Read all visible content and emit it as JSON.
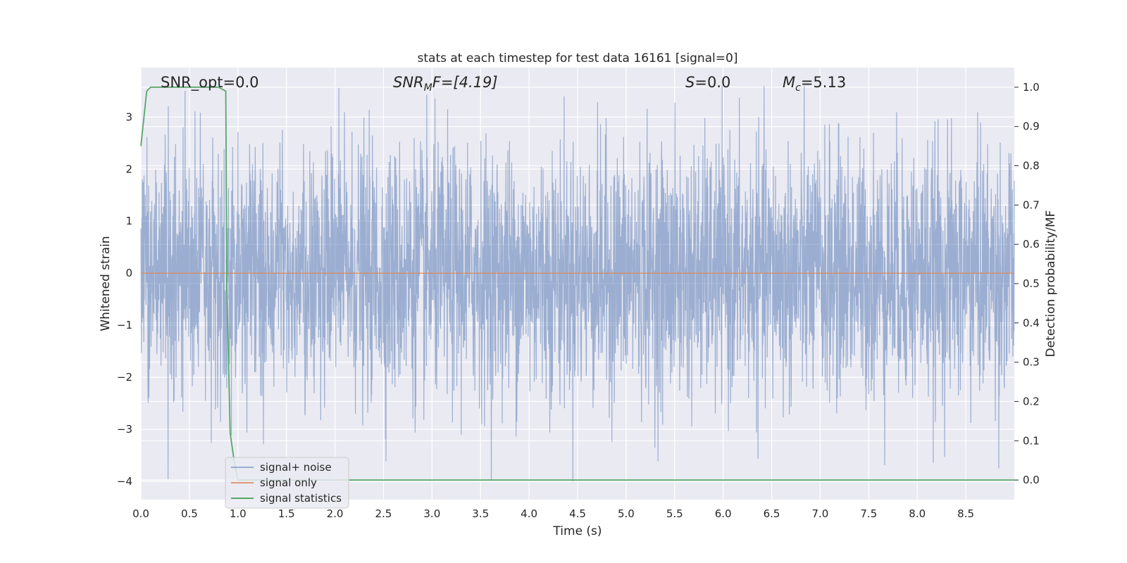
{
  "chart_data": {
    "type": "line",
    "title": "stats at each timestep for test data 16161 [signal=0]",
    "xlabel": "Time (s)",
    "ylabel_left": "Whitened strain",
    "ylabel_right": "Detection probability/MF",
    "xlim": [
      0.0,
      9.0
    ],
    "ylim_left": [
      -4.35,
      3.95
    ],
    "ylim_right": [
      -0.05,
      1.05
    ],
    "x_ticks": [
      "0.0",
      "0.5",
      "1.0",
      "1.5",
      "2.0",
      "2.5",
      "3.0",
      "3.5",
      "4.0",
      "4.5",
      "5.0",
      "5.5",
      "6.0",
      "6.5",
      "7.0",
      "7.5",
      "8.0",
      "8.5"
    ],
    "y_ticks_left": [
      "−4",
      "−3",
      "−2",
      "−1",
      "0",
      "1",
      "2",
      "3"
    ],
    "y_ticks_right": [
      "0.0",
      "0.1",
      "0.2",
      "0.3",
      "0.4",
      "0.5",
      "0.6",
      "0.7",
      "0.8",
      "0.9",
      "1.0"
    ],
    "grid": true,
    "legend_placement": "lower-left",
    "annotations": {
      "snr_opt": "SNR_opt=0.0",
      "snr_mf_base": "SNR",
      "snr_mf_sub": "M",
      "snr_mf_rest": "F=[4.19]",
      "s_var": "S",
      "s_rest": "=0.0",
      "mc_var": "M",
      "mc_sub": "c",
      "mc_rest": "=5.13"
    },
    "series": [
      {
        "name": "signal+ noise",
        "color": "#4c72b0",
        "axis": "left",
        "style": "noise",
        "approx_range": [
          -4.0,
          3.6
        ],
        "x_range": [
          0.0,
          9.0
        ]
      },
      {
        "name": "signal only",
        "color": "#dd8452",
        "axis": "left",
        "x": [
          0.0,
          9.0
        ],
        "y": [
          0.0,
          0.0
        ]
      },
      {
        "name": "signal statistics",
        "color": "#55a868",
        "axis": "right",
        "x": [
          0.0,
          0.06,
          0.1,
          0.2,
          0.5,
          0.8,
          0.875,
          0.885,
          0.92,
          0.96,
          1.0,
          9.0
        ],
        "y": [
          0.85,
          0.99,
          1.0,
          1.0,
          1.0,
          1.0,
          0.99,
          0.5,
          0.12,
          0.05,
          0.0,
          0.0
        ]
      }
    ]
  }
}
